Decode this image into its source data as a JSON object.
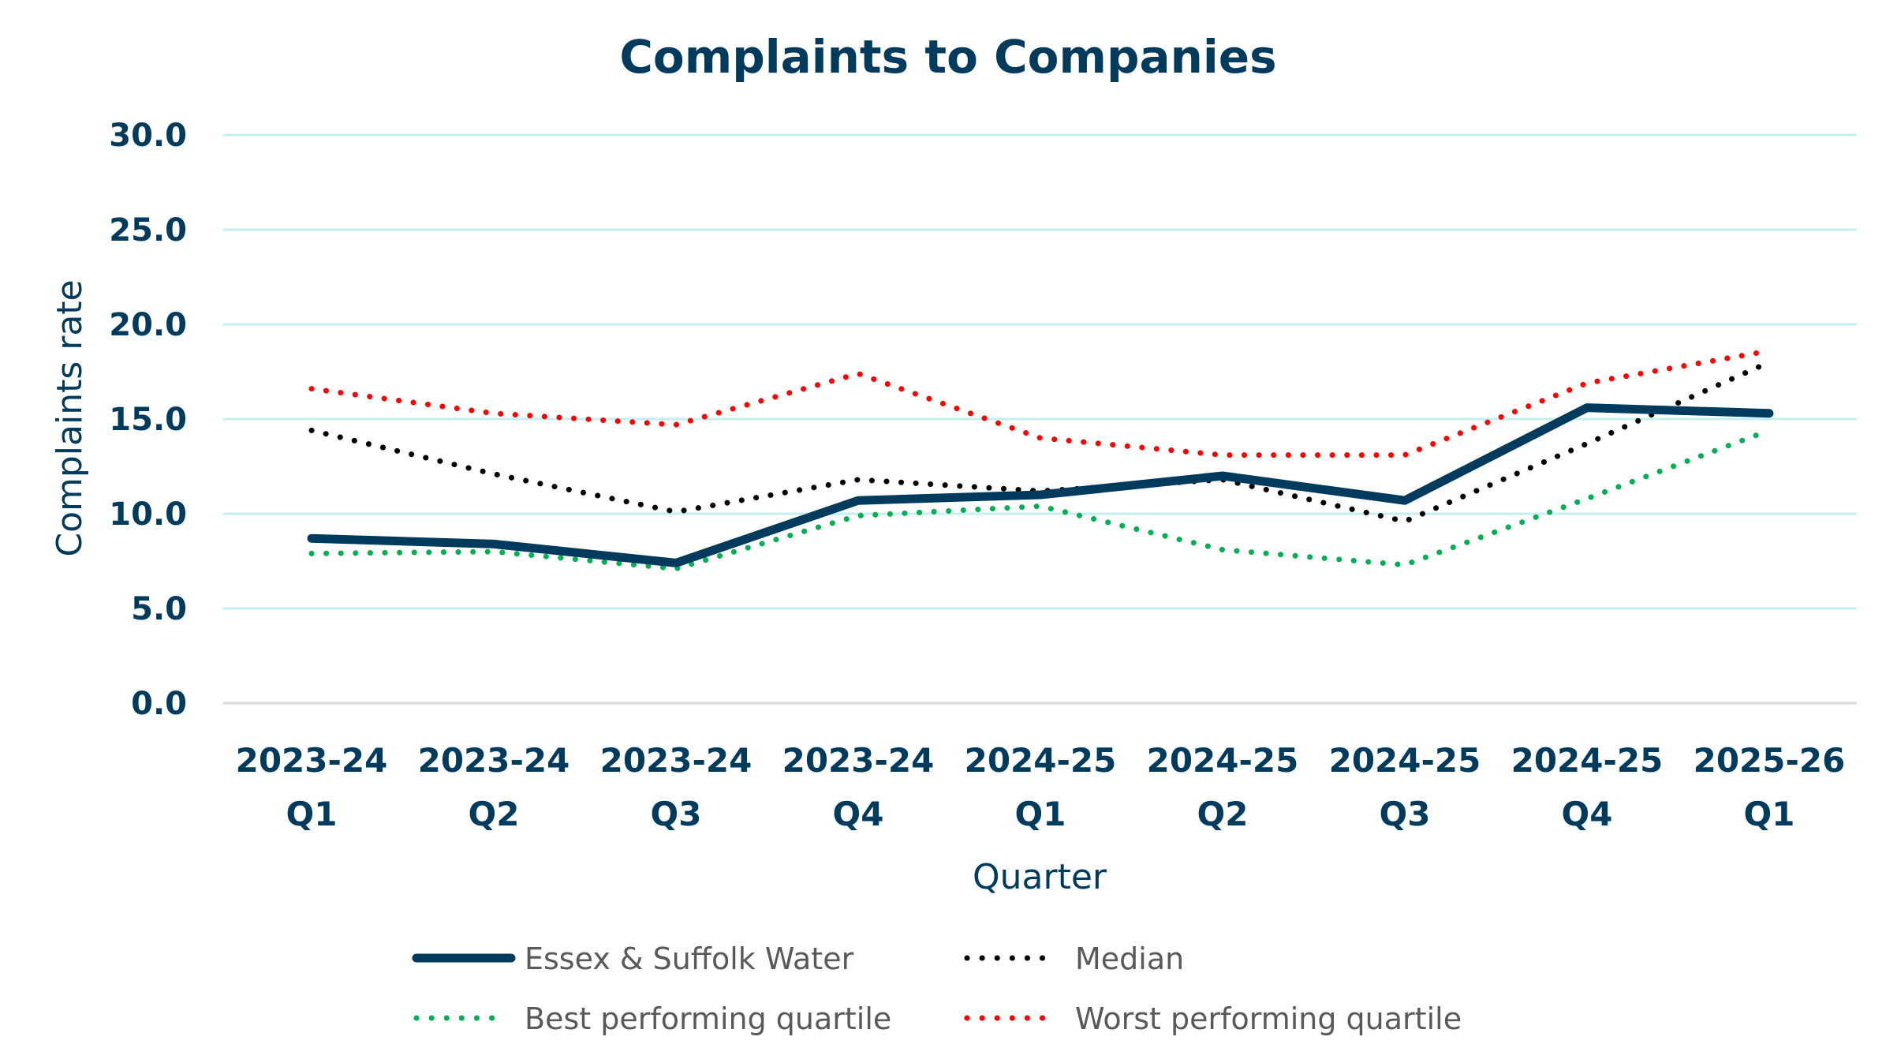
{
  "chart_data": {
    "type": "line",
    "title": "Complaints to Companies",
    "xlabel": "Quarter",
    "ylabel": "Complaints rate",
    "ylim": [
      0,
      30
    ],
    "yticks": [
      "0.0",
      "5.0",
      "10.0",
      "15.0",
      "20.0",
      "25.0",
      "30.0"
    ],
    "ytick_values": [
      0,
      5,
      10,
      15,
      20,
      25,
      30
    ],
    "grid": true,
    "legend_position": "bottom",
    "categories": [
      [
        "2023-24",
        "Q1"
      ],
      [
        "2023-24",
        "Q2"
      ],
      [
        "2023-24",
        "Q3"
      ],
      [
        "2023-24",
        "Q4"
      ],
      [
        "2024-25",
        "Q1"
      ],
      [
        "2024-25",
        "Q2"
      ],
      [
        "2024-25",
        "Q3"
      ],
      [
        "2024-25",
        "Q4"
      ],
      [
        "2025-26",
        "Q1"
      ]
    ],
    "series": [
      {
        "name": "Essex & Suffolk Water",
        "style": "solid",
        "color": "#003A5D",
        "values": [
          8.7,
          8.4,
          7.4,
          10.7,
          11.0,
          12.0,
          10.7,
          15.6,
          15.3
        ]
      },
      {
        "name": "Median",
        "style": "dotted",
        "color": "#000000",
        "values": [
          14.4,
          12.1,
          10.1,
          11.8,
          11.2,
          11.8,
          9.6,
          13.7,
          18.0
        ]
      },
      {
        "name": "Best performing quartile",
        "style": "dotted",
        "color": "#00B050",
        "values": [
          7.9,
          8.0,
          7.1,
          9.9,
          10.4,
          8.1,
          7.3,
          10.8,
          14.4
        ]
      },
      {
        "name": "Worst performing quartile",
        "style": "dotted",
        "color": "#FF0000",
        "values": [
          16.6,
          15.3,
          14.7,
          17.4,
          14.0,
          13.1,
          13.1,
          16.9,
          18.6
        ]
      }
    ],
    "legend_order": [
      0,
      1,
      2,
      3
    ]
  }
}
